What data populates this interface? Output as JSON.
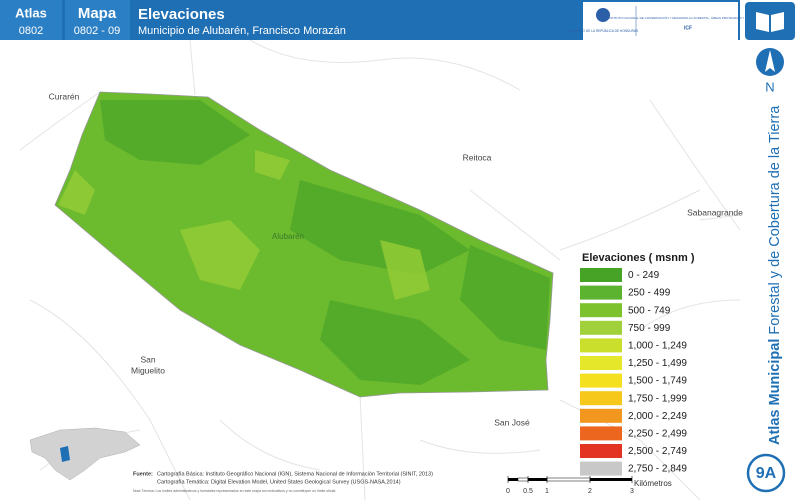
{
  "header": {
    "atlas_label": "Atlas",
    "atlas_code": "0802",
    "map_label": "Mapa",
    "map_code": "0802 - 09",
    "title": "Elevaciones",
    "subtitle": "Municipio de Alubarén, Francisco Morazán",
    "logo_left": "GOBIERNO DE LA REPÚBLICA DE HONDURAS",
    "logo_right": "INSTITUTO NACIONAL DE CONSERVACIÓN Y DESARROLLO FORESTAL, ÁREAS PROTEGIDAS Y VIDA SILVESTRE",
    "logo_acronym": "ICF"
  },
  "sidebar": {
    "north": "N",
    "series_bold": "Atlas Municipal",
    "series_rest": " Forestal y de Cobertura de la Tierra",
    "page": "9A"
  },
  "map": {
    "places": [
      {
        "lines": [
          "Curarén"
        ]
      },
      {
        "lines": [
          "Reitoca"
        ]
      },
      {
        "lines": [
          "Sabanagrande"
        ]
      },
      {
        "lines": [
          "Alubarén"
        ]
      },
      {
        "lines": [
          "San",
          "Miguelito"
        ]
      },
      {
        "lines": [
          "San José"
        ]
      }
    ]
  },
  "legend": {
    "title": "Elevaciones ( msnm )",
    "items": [
      {
        "label": "0 - 249",
        "color": "#46a326"
      },
      {
        "label": "250 - 499",
        "color": "#5cb32f"
      },
      {
        "label": "500 - 749",
        "color": "#7cc22d"
      },
      {
        "label": "750 - 999",
        "color": "#a0d13a"
      },
      {
        "label": "1,000 - 1,249",
        "color": "#c9df2c"
      },
      {
        "label": "1,250 - 1,499",
        "color": "#e5e72a"
      },
      {
        "label": "1,500 - 1,749",
        "color": "#f4e01e"
      },
      {
        "label": "1,750 - 1,999",
        "color": "#f6c81c"
      },
      {
        "label": "2,000 - 2,249",
        "color": "#f1961e"
      },
      {
        "label": "2,250 - 2,499",
        "color": "#ec661f"
      },
      {
        "label": "2,500 - 2,749",
        "color": "#e33322"
      },
      {
        "label": "2,750 - 2,849",
        "color": "#c8c8c8"
      }
    ]
  },
  "footer": {
    "source_label": "Fuente:",
    "source_1": "Cartografía Básica: Instituto Geográfico Nacional (IGN), Sistema Nacional de Información Territorial (SINIT, 2013)",
    "source_2": "Cartografía Temática: Digital Elevation Model, United States Geological Survey (USGS-NASA,2014)",
    "note": "Nota Técnica: Los límites administrativos y forestales representados en este mapa son indicativos y no constituyen un límite oficial."
  },
  "scale": {
    "ticks": [
      "0",
      "0.5",
      "1",
      "2",
      "3"
    ],
    "unit": "Kilómetros"
  }
}
